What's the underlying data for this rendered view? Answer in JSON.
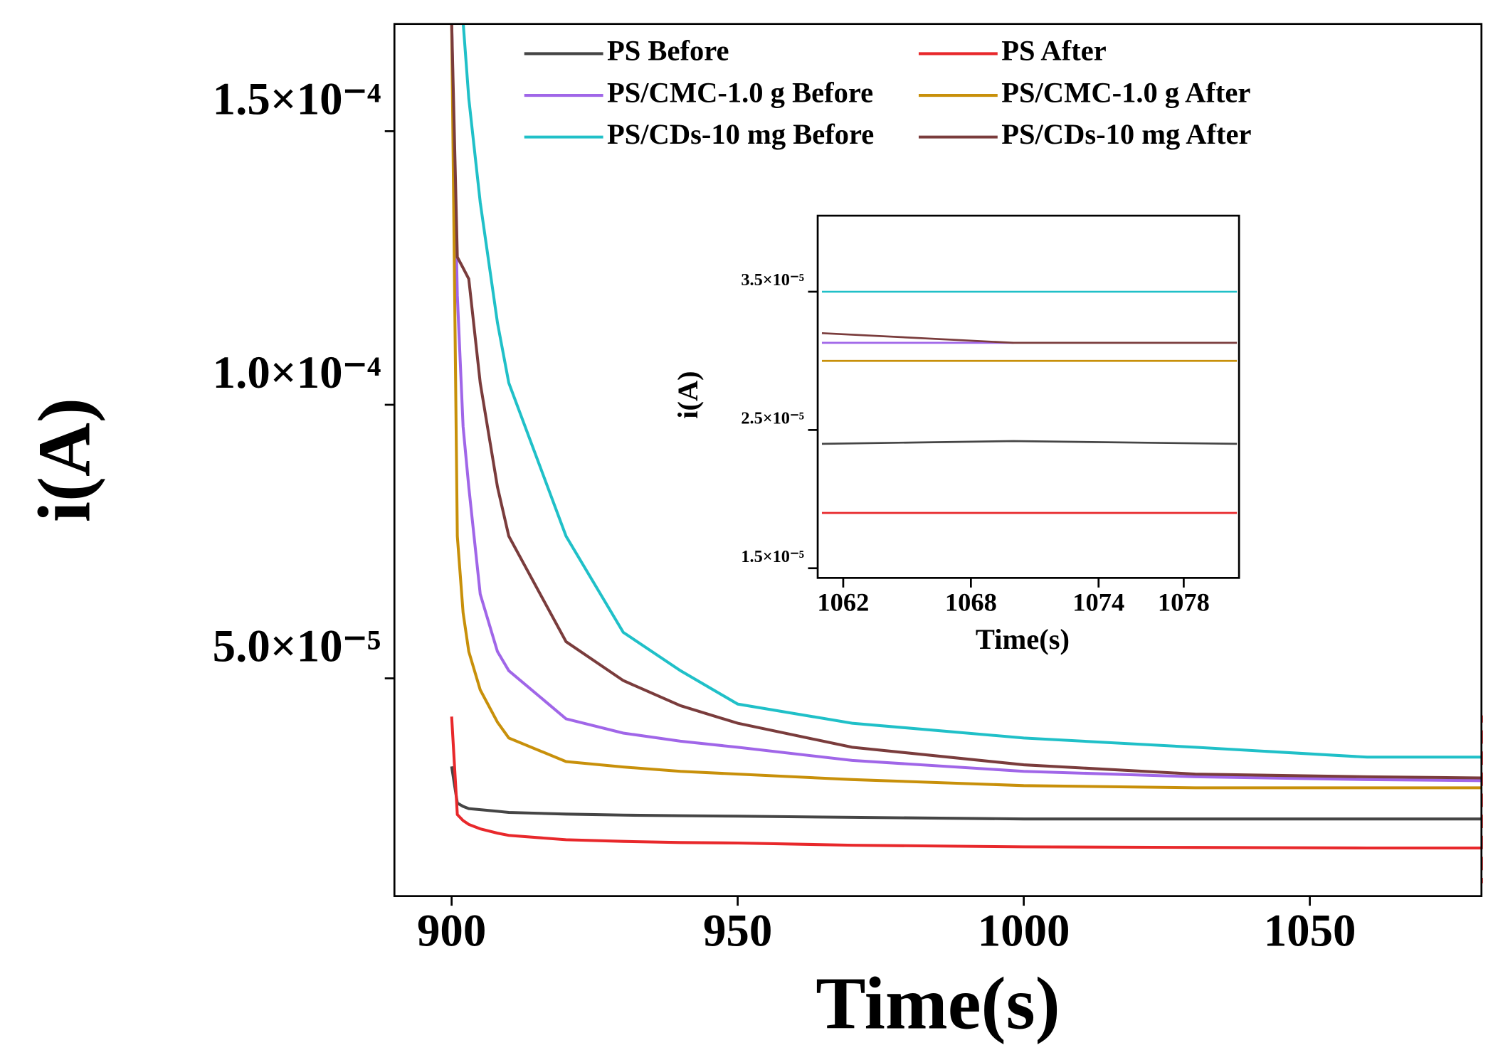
{
  "chart_data": [
    {
      "type": "line",
      "x_label": "Time(s)",
      "y_label": "i(A)",
      "x": [
        900,
        901,
        902,
        903,
        905,
        908,
        910,
        920,
        930,
        940,
        950,
        970,
        1000,
        1030,
        1060,
        1080
      ],
      "xlim": [
        890,
        1080
      ],
      "xticks": [
        900,
        950,
        1000,
        1050
      ],
      "ylim": [
        1.02e-05,
        0.0001696
      ],
      "yticks": [
        {
          "value": 5e-05,
          "label": "5.0×10⁻⁵"
        },
        {
          "value": 0.0001,
          "label": "1.0×10⁻⁴"
        },
        {
          "value": 0.00015,
          "label": "1.5×10⁻⁴"
        }
      ],
      "legend": "top",
      "series": [
        {
          "name": "PS Before",
          "color": "#454545",
          "values": [
            3.39e-05,
            2.72e-05,
            2.66e-05,
            2.62e-05,
            2.6e-05,
            2.57e-05,
            2.55e-05,
            2.52e-05,
            2.5e-05,
            2.49e-05,
            2.48e-05,
            2.46e-05,
            2.43e-05,
            2.43e-05,
            2.43e-05,
            2.43e-05
          ]
        },
        {
          "name": "PS After",
          "color": "#e8282b",
          "values": [
            4.3e-05,
            2.51e-05,
            2.4e-05,
            2.33e-05,
            2.25e-05,
            2.17e-05,
            2.13e-05,
            2.05e-05,
            2.02e-05,
            2e-05,
            1.99e-05,
            1.95e-05,
            1.92e-05,
            1.91e-05,
            1.9e-05,
            1.9e-05
          ]
        },
        {
          "name": "PS/CMC-1.0 g Before",
          "color": "#a066e8",
          "values": [
            0.00017,
            0.00012,
            9.6e-05,
            8.5e-05,
            6.54e-05,
            5.49e-05,
            5.14e-05,
            4.26e-05,
            4e-05,
            3.85e-05,
            3.74e-05,
            3.5e-05,
            3.3e-05,
            3.2e-05,
            3.15e-05,
            3.13e-05
          ]
        },
        {
          "name": "PS/CMC-1.0 g After",
          "color": "#c8900a",
          "values": [
            0.00017,
            7.6e-05,
            6.2e-05,
            5.49e-05,
            4.79e-05,
            4.2e-05,
            3.91e-05,
            3.48e-05,
            3.38e-05,
            3.3e-05,
            3.25e-05,
            3.15e-05,
            3.04e-05,
            3e-05,
            3e-05,
            3e-05
          ]
        },
        {
          "name": "PS/CDs-10 mg Before",
          "color": "#20c0c8",
          "values": [
            null,
            null,
            0.00017,
            0.000156,
            0.000137,
            0.000115,
            0.000104,
            7.6e-05,
            5.84e-05,
            5.14e-05,
            4.53e-05,
            4.18e-05,
            3.91e-05,
            3.74e-05,
            3.56e-05,
            3.56e-05
          ]
        },
        {
          "name": "PS/CDs-10 mg After",
          "color": "#7a3c3c",
          "values": [
            0.00017,
            0.000127,
            0.000125,
            0.000123,
            0.000104,
            8.5e-05,
            7.6e-05,
            5.67e-05,
            4.96e-05,
            4.5e-05,
            4.18e-05,
            3.74e-05,
            3.42e-05,
            3.25e-05,
            3.2e-05,
            3.18e-05
          ]
        }
      ]
    },
    {
      "type": "line",
      "x_label": "Time(s)",
      "y_label": "i(A)",
      "x": [
        1061,
        1070,
        1080.5
      ],
      "xlim": [
        1060.8,
        1080.6
      ],
      "xticks": [
        1062,
        1068,
        1074,
        1078
      ],
      "ylim": [
        1.43e-05,
        4.05e-05
      ],
      "yticks": [
        {
          "value": 1.5e-05,
          "label": "1.5×10⁻⁵"
        },
        {
          "value": 2.5e-05,
          "label": "2.5×10⁻⁵"
        },
        {
          "value": 3.5e-05,
          "label": "3.5×10⁻⁵"
        }
      ],
      "series": [
        {
          "color": "#454545",
          "values": [
            2.4e-05,
            2.42e-05,
            2.4e-05
          ]
        },
        {
          "color": "#e8282b",
          "values": [
            1.9e-05,
            1.9e-05,
            1.9e-05
          ]
        },
        {
          "color": "#a066e8",
          "values": [
            3.13e-05,
            3.13e-05,
            null
          ]
        },
        {
          "color": "#c8900a",
          "values": [
            3e-05,
            3e-05,
            3e-05
          ]
        },
        {
          "color": "#20c0c8",
          "values": [
            3.5e-05,
            3.5e-05,
            3.5e-05
          ]
        },
        {
          "color": "#7a3c3c",
          "values": [
            3.2e-05,
            3.13e-05,
            3.13e-05
          ]
        }
      ]
    }
  ]
}
